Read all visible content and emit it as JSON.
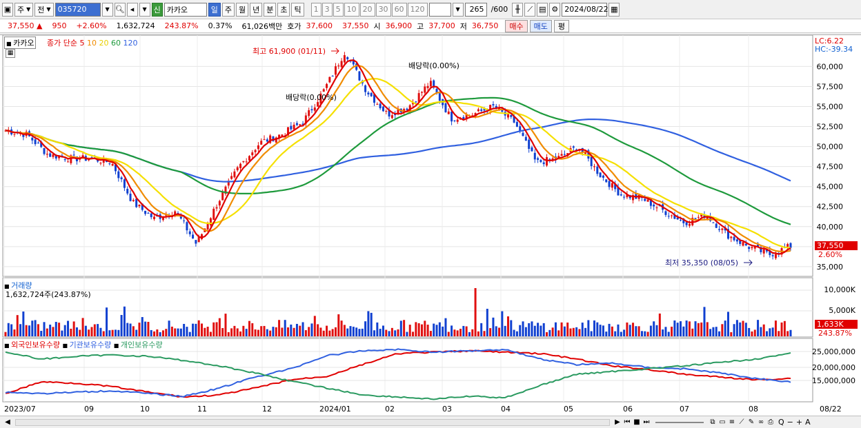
{
  "toolbar": {
    "period_type": "주",
    "prev_label": "전",
    "code": "035720",
    "stock_name": "카카오",
    "new_badge": "신",
    "intervals": [
      "일",
      "주",
      "월",
      "년",
      "분",
      "초",
      "틱"
    ],
    "selected_interval": "일",
    "ticks": [
      "1",
      "3",
      "5",
      "10",
      "20",
      "30",
      "60",
      "120"
    ],
    "count": "265",
    "count_total": "/600",
    "date": "2024/08/22"
  },
  "quote": {
    "price": "37,550",
    "arrow": "▲",
    "change": "950",
    "change_pct": "+2.60%",
    "volume": "1,632,724",
    "volume_ratio": "243.87%",
    "turnover": "0.37%",
    "amount": "61,026백만",
    "bid_label": "호가",
    "ask": "37,600",
    "bid": "37,550",
    "open_label": "시",
    "open": "36,900",
    "high_label": "고",
    "high": "37,700",
    "low_label": "저",
    "low": "36,750",
    "buy_label": "매수",
    "sell_label": "매도",
    "avg_label": "평"
  },
  "chart": {
    "stock_tag": "카카오",
    "ma_title": "종가 단순",
    "ma_periods": [
      "5",
      "10",
      "20",
      "60",
      "120"
    ],
    "lc_label": "LC:6.22",
    "hc_label": "HC:-39.34",
    "max_label": "최고 61,900 (01/11)",
    "min_label": "최저 35,350 (08/05)",
    "dividend_label_1": "배당락(0.00%)",
    "dividend_label_2": "배당락(0.00%)",
    "last_price_tag": "37,550",
    "last_pct_tag": "2.60%",
    "volume_title": "거래량",
    "volume_value": "1,632,724주(243.87%)",
    "volume_tag": "1,633K",
    "volume_pct_tag": "243.87%",
    "holding_labels": [
      "외국인보유수량",
      "기관보유수량",
      "개인보유수량"
    ],
    "colors": {
      "ma5": "#e00000",
      "ma10": "#f08c00",
      "ma20": "#f5e000",
      "ma60": "#1e9a3c",
      "ma120": "#3060e0",
      "up": "#e01010",
      "down": "#1040d0",
      "foreign": "#e00000",
      "inst": "#3060e0",
      "indiv": "#2a9a60"
    }
  },
  "chart_data": {
    "type": "line",
    "title": "카카오",
    "price_axis": [
      60000,
      57500,
      55000,
      52500,
      50000,
      47500,
      45000,
      42500,
      40000,
      37500,
      35000
    ],
    "price_axis_labels": [
      "60,000",
      "57,500",
      "55,000",
      "52,500",
      "50,000",
      "47,500",
      "45,000",
      "42,500",
      "40,000",
      "37,500",
      "35,000"
    ],
    "volume_axis_labels": [
      "10,000K",
      "5,000K"
    ],
    "holding_axis_labels": [
      "25,000,000",
      "20,000,000",
      "15,000,000"
    ],
    "x_labels": [
      "2023/07",
      "09",
      "10",
      "11",
      "12",
      "2024/01",
      "02",
      "03",
      "04",
      "05",
      "06",
      "07",
      "08",
      "08/22"
    ],
    "close_path_keypoints": [
      52000,
      51500,
      49000,
      48500,
      48500,
      48000,
      43000,
      41000,
      42000,
      37800,
      43000,
      47500,
      50500,
      51500,
      53000,
      57000,
      61900,
      57000,
      54000,
      55000,
      58000,
      53500,
      54000,
      55000,
      53000,
      48000,
      48500,
      50000,
      46500,
      44000,
      43500,
      42000,
      40500,
      41500,
      39000,
      37500,
      36500,
      37550
    ],
    "series": [
      {
        "name": "외국인보유수량"
      },
      {
        "name": "기관보유수량"
      },
      {
        "name": "개인보유수량"
      }
    ]
  },
  "bottom": {
    "zoom_label": "Q",
    "minus_label": "−",
    "plus_label": "+",
    "a_label": "A"
  }
}
